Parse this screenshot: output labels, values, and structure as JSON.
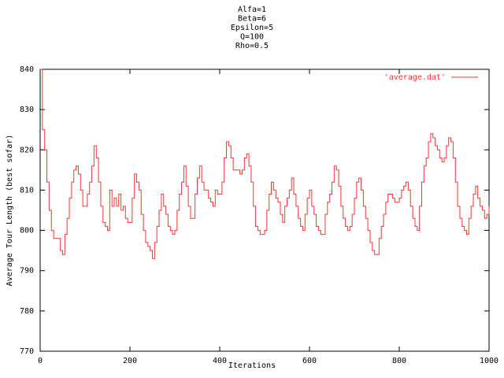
{
  "chart_data": {
    "type": "line",
    "title": [
      "Alfa=1",
      "Beta=6",
      "Epsilon=5",
      "Q=100",
      "Rho=0.5"
    ],
    "x_label": "Iterations",
    "y_label": "Average Tour Length (best sofar)",
    "xlim": [
      0,
      1000
    ],
    "ylim": [
      770,
      840
    ],
    "xticks": [
      0,
      200,
      400,
      600,
      800,
      1000
    ],
    "yticks": [
      770,
      780,
      790,
      800,
      810,
      820,
      830,
      840
    ],
    "legend": "upper right",
    "step": true,
    "x": [
      0,
      5,
      10,
      15,
      20,
      25,
      30,
      35,
      40,
      45,
      50,
      55,
      60,
      65,
      70,
      75,
      80,
      85,
      90,
      95,
      100,
      105,
      110,
      115,
      120,
      125,
      130,
      135,
      140,
      145,
      150,
      155,
      160,
      165,
      170,
      175,
      180,
      185,
      190,
      195,
      200,
      205,
      210,
      215,
      220,
      225,
      230,
      235,
      240,
      245,
      250,
      255,
      260,
      265,
      270,
      275,
      280,
      285,
      290,
      295,
      300,
      305,
      310,
      315,
      320,
      325,
      330,
      335,
      340,
      345,
      350,
      355,
      360,
      365,
      370,
      375,
      380,
      385,
      390,
      395,
      400,
      405,
      410,
      415,
      420,
      425,
      430,
      435,
      440,
      445,
      450,
      455,
      460,
      465,
      470,
      475,
      480,
      485,
      490,
      495,
      500,
      505,
      510,
      515,
      520,
      525,
      530,
      535,
      540,
      545,
      550,
      555,
      560,
      565,
      570,
      575,
      580,
      585,
      590,
      595,
      600,
      605,
      610,
      615,
      620,
      625,
      630,
      635,
      640,
      645,
      650,
      655,
      660,
      665,
      670,
      675,
      680,
      685,
      690,
      695,
      700,
      705,
      710,
      715,
      720,
      725,
      730,
      735,
      740,
      745,
      750,
      755,
      760,
      765,
      770,
      775,
      780,
      785,
      790,
      795,
      800,
      805,
      810,
      815,
      820,
      825,
      830,
      835,
      840,
      845,
      850,
      855,
      860,
      865,
      870,
      875,
      880,
      885,
      890,
      895,
      900,
      905,
      910,
      915,
      920,
      925,
      930,
      935,
      940,
      945,
      950,
      955,
      960,
      965,
      970,
      975,
      980,
      985,
      990,
      995,
      1000
    ],
    "series": [
      {
        "name": "'average.dat'",
        "color": "#ff3333",
        "values": [
          840,
          825,
          820,
          812,
          805,
          800,
          798,
          798,
          798,
          795,
          794,
          799,
          803,
          808,
          812,
          815,
          816,
          814,
          810,
          806,
          806,
          809,
          812,
          816,
          821,
          818,
          812,
          806,
          802,
          801,
          800,
          810,
          806,
          808,
          806,
          809,
          805,
          806,
          803,
          802,
          802,
          808,
          814,
          812,
          810,
          804,
          800,
          797,
          796,
          795,
          793,
          797,
          801,
          805,
          809,
          806,
          804,
          801,
          800,
          799,
          800,
          805,
          809,
          812,
          816,
          811,
          806,
          803,
          803,
          809,
          813,
          816,
          812,
          810,
          810,
          808,
          807,
          806,
          810,
          809,
          809,
          812,
          818,
          822,
          821,
          818,
          815,
          815,
          815,
          814,
          815,
          818,
          819,
          816,
          812,
          806,
          801,
          800,
          799,
          799,
          800,
          805,
          809,
          812,
          810,
          808,
          807,
          804,
          802,
          806,
          808,
          810,
          813,
          809,
          806,
          803,
          801,
          800,
          804,
          808,
          810,
          806,
          804,
          801,
          800,
          799,
          799,
          804,
          807,
          809,
          812,
          816,
          815,
          811,
          806,
          803,
          801,
          800,
          801,
          804,
          808,
          812,
          813,
          810,
          806,
          803,
          800,
          797,
          795,
          794,
          794,
          798,
          801,
          804,
          807,
          809,
          809,
          808,
          807,
          807,
          808,
          810,
          811,
          812,
          810,
          806,
          803,
          801,
          800,
          806,
          812,
          816,
          818,
          822,
          824,
          823,
          821,
          820,
          818,
          817,
          818,
          821,
          823,
          822,
          818,
          812,
          806,
          803,
          801,
          800,
          799,
          803,
          806,
          809,
          811,
          808,
          806,
          805,
          803,
          804,
          806
        ]
      }
    ]
  }
}
